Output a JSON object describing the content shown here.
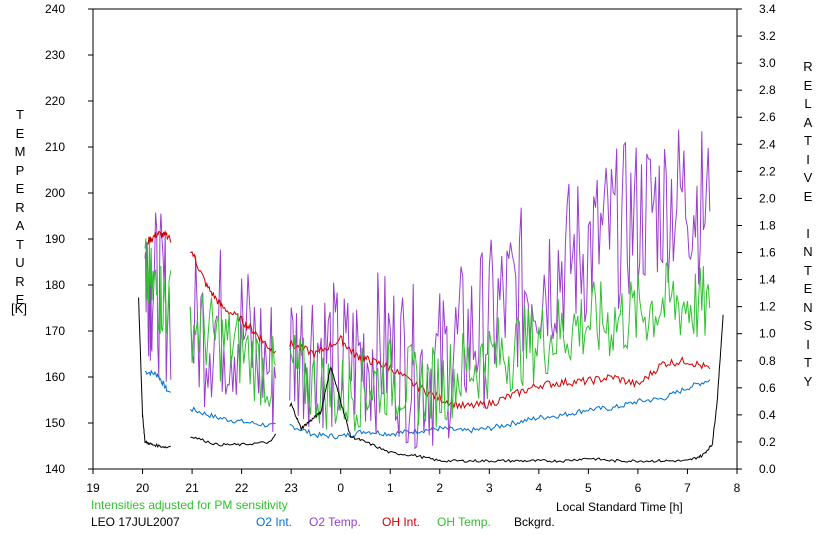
{
  "chart_data": {
    "type": "line",
    "title": "",
    "xlabel": "Local Standard Time [h]",
    "ylabel_left": "TEMPERATURE",
    "ylabel_left_unit": "[K]",
    "ylabel_right": "RELATIVE INTENSITY",
    "note": "Intensities adjusted for PM sensitivity",
    "station_date": "LEO 17JUL2007",
    "x_ticks": [
      "19",
      "20",
      "21",
      "22",
      "23",
      "0",
      "1",
      "2",
      "3",
      "4",
      "5",
      "6",
      "7",
      "8"
    ],
    "y_left_ticks": [
      "240",
      "230",
      "220",
      "210",
      "200",
      "190",
      "180",
      "170",
      "160",
      "150",
      "140"
    ],
    "y_right_ticks": [
      "3.4",
      "3.2",
      "3.0",
      "2.8",
      "2.6",
      "2.4",
      "2.2",
      "2.0",
      "1.8",
      "1.6",
      "1.4",
      "1.2",
      "1.0",
      "0.8",
      "0.6",
      "0.4",
      "0.2",
      "0.0"
    ],
    "xlim": [
      19,
      32
    ],
    "ylim_left": [
      140,
      240
    ],
    "ylim_right": [
      0,
      3.4
    ],
    "grid": false,
    "legend_position": "bottom",
    "series": [
      {
        "name": "O2 Int.",
        "color": "#0070d0",
        "axis": "right",
        "x": [
          20.05,
          20.3,
          20.5,
          21.0,
          21.5,
          22.0,
          22.6,
          23.0,
          23.5,
          24.0,
          24.5,
          25.0,
          25.5,
          26.0,
          26.5,
          27.0,
          27.5,
          28.0,
          28.5,
          29.0,
          29.5,
          30.0,
          30.5,
          31.0,
          31.45
        ],
        "y": [
          0.72,
          0.7,
          0.58,
          0.44,
          0.38,
          0.35,
          0.32,
          0.32,
          0.25,
          0.24,
          0.28,
          0.26,
          0.28,
          0.3,
          0.28,
          0.3,
          0.34,
          0.38,
          0.4,
          0.44,
          0.45,
          0.5,
          0.52,
          0.6,
          0.66
        ]
      },
      {
        "name": "O2 Temp.",
        "color": "#9a3dcc",
        "axis": "left",
        "x": [
          20.05,
          20.2,
          20.5,
          21.0,
          21.5,
          22.0,
          22.6,
          23.0,
          23.5,
          24.0,
          24.5,
          25.0,
          25.5,
          26.0,
          26.5,
          27.0,
          27.5,
          28.0,
          28.5,
          29.0,
          29.5,
          30.0,
          30.5,
          31.0,
          31.45
        ],
        "y": [
          185,
          180,
          176,
          170,
          172,
          170,
          162,
          165,
          168,
          162,
          165,
          166,
          162,
          162,
          168,
          172,
          178,
          182,
          185,
          188,
          192,
          195,
          198,
          200,
          196
        ]
      },
      {
        "name": "OH Int.",
        "color": "#d00000",
        "axis": "right",
        "x": [
          20.1,
          20.3,
          20.5,
          21.0,
          21.3,
          21.6,
          22.0,
          22.3,
          22.6,
          23.0,
          23.5,
          24.0,
          24.3,
          24.6,
          25.0,
          25.5,
          26.0,
          26.5,
          27.0,
          27.5,
          28.0,
          28.5,
          29.0,
          29.5,
          30.0,
          30.5,
          31.0,
          31.45
        ],
        "y": [
          1.68,
          1.74,
          1.72,
          1.6,
          1.35,
          1.2,
          1.1,
          1.0,
          0.88,
          0.92,
          0.85,
          0.96,
          0.84,
          0.8,
          0.75,
          0.62,
          0.52,
          0.46,
          0.48,
          0.55,
          0.62,
          0.64,
          0.65,
          0.68,
          0.62,
          0.78,
          0.8,
          0.74
        ]
      },
      {
        "name": "OH Temp.",
        "color": "#30c030",
        "axis": "left",
        "x": [
          20.05,
          20.3,
          20.5,
          21.0,
          21.5,
          22.0,
          22.6,
          23.0,
          23.5,
          24.0,
          24.5,
          25.0,
          25.5,
          26.0,
          26.5,
          27.0,
          27.5,
          28.0,
          28.5,
          29.0,
          29.5,
          30.0,
          30.5,
          31.0,
          31.45
        ],
        "y": [
          182,
          178,
          176,
          172,
          168,
          166,
          160,
          162,
          158,
          156,
          158,
          160,
          158,
          158,
          162,
          164,
          166,
          168,
          170,
          172,
          172,
          174,
          176,
          176,
          175
        ]
      },
      {
        "name": "Bckgrd.",
        "color": "#000000",
        "axis": "right",
        "x": [
          19.92,
          20.0,
          20.05,
          20.2,
          20.5,
          21.0,
          21.5,
          22.0,
          22.6,
          23.0,
          23.2,
          23.4,
          23.6,
          23.8,
          24.0,
          24.2,
          24.5,
          25.0,
          25.5,
          26.0,
          26.5,
          27.0,
          27.5,
          28.0,
          28.5,
          29.0,
          29.5,
          30.0,
          30.5,
          31.0,
          31.3,
          31.5,
          31.6,
          31.72
        ],
        "y": [
          1.26,
          0.4,
          0.2,
          0.18,
          0.16,
          0.24,
          0.18,
          0.18,
          0.2,
          0.48,
          0.3,
          0.36,
          0.42,
          0.76,
          0.5,
          0.24,
          0.2,
          0.12,
          0.1,
          0.06,
          0.06,
          0.06,
          0.06,
          0.06,
          0.06,
          0.08,
          0.06,
          0.06,
          0.06,
          0.06,
          0.1,
          0.18,
          0.5,
          1.14
        ]
      }
    ]
  }
}
